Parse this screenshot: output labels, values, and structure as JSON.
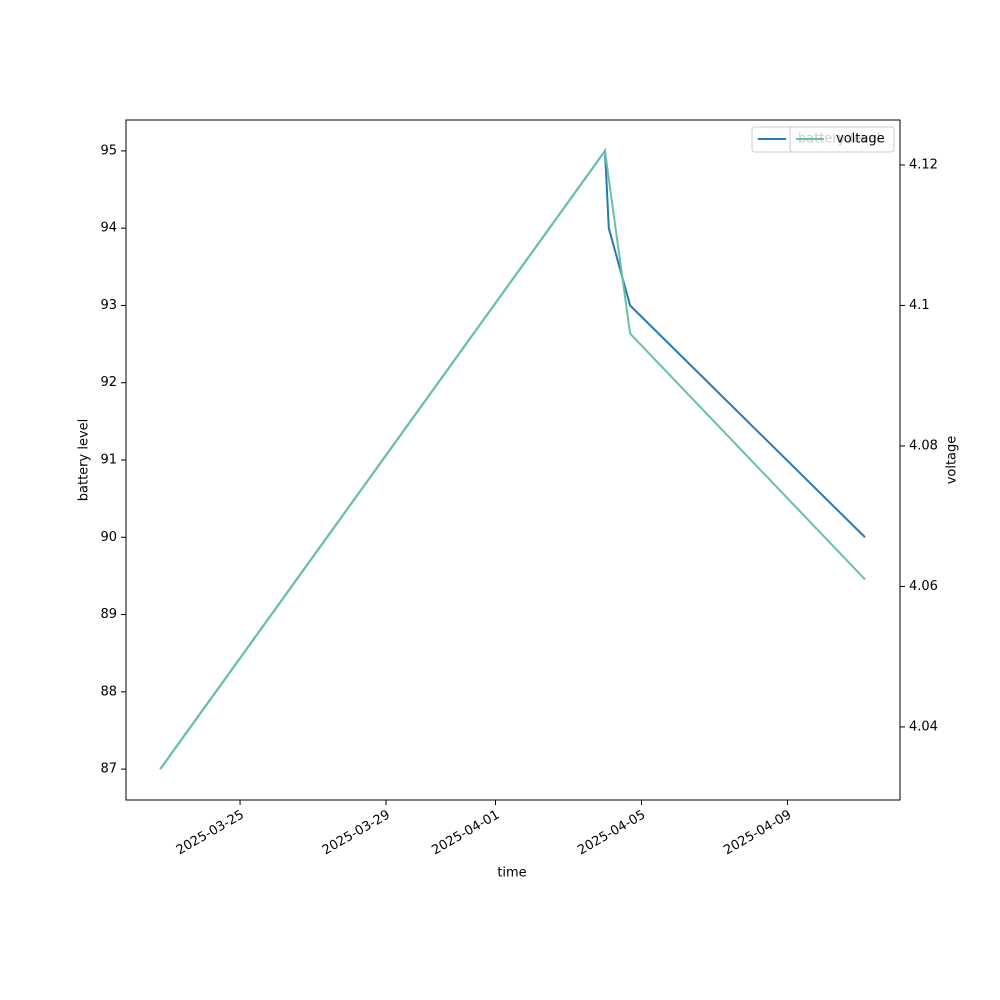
{
  "chart_data": {
    "type": "line",
    "x_label": "time",
    "y_label": "battery level",
    "y2_label": "voltage",
    "x": [
      "2025-03-22T19:30",
      "2025-04-04T00:00",
      "2025-04-04T02:30",
      "2025-04-04T16:30",
      "2025-04-11T03:00"
    ],
    "series": [
      {
        "name": "battery level",
        "color": "#2878b5",
        "values": [
          87,
          95,
          94,
          93,
          90
        ]
      },
      {
        "name": "voltage",
        "color": "#66c2a5",
        "axis": "y2",
        "values": [
          4.034,
          4.122,
          4.118,
          4.096,
          4.061
        ]
      }
    ],
    "xlim": [
      "2025-03-21T21:00",
      "2025-04-12T02:00"
    ],
    "xticks": [
      "2025-03-25",
      "2025-03-29",
      "2025-04-01",
      "2025-04-05",
      "2025-04-09"
    ],
    "ylim": [
      86.6,
      95.4
    ],
    "yticks": [
      87,
      88,
      89,
      90,
      91,
      92,
      93,
      94,
      95
    ],
    "y2lim": [
      4.0296,
      4.1264
    ],
    "y2ticks": [
      4.04,
      4.06,
      4.08,
      4.1,
      4.12
    ],
    "legend": "upper right"
  }
}
